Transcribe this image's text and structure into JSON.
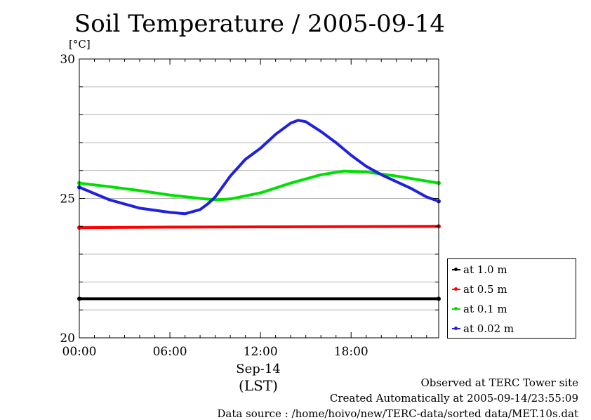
{
  "chart_data": {
    "type": "line",
    "title": "Soil Temperature / 2005-09-14",
    "ylabel": "[°C]",
    "ylim": [
      20,
      30
    ],
    "yticks": [
      20,
      25,
      30
    ],
    "xlim": [
      0,
      23.8
    ],
    "xtick_labels": [
      "00:00",
      "06:00",
      "12:00",
      "18:00"
    ],
    "xticks": [
      0,
      6,
      12,
      18
    ],
    "xlabel_lines": [
      "Sep-14",
      "(LST)"
    ],
    "grid": true,
    "legend_position": "right",
    "series": [
      {
        "name": "at 1.0 m",
        "color": "#000000",
        "x": [
          0,
          6,
          12,
          18,
          23.8
        ],
        "y": [
          21.4,
          21.4,
          21.4,
          21.4,
          21.4
        ]
      },
      {
        "name": "at 0.5 m",
        "color": "#ff0000",
        "x": [
          0,
          6,
          12,
          18,
          23.8
        ],
        "y": [
          23.95,
          23.97,
          23.98,
          23.99,
          24.0
        ]
      },
      {
        "name": "at 0.1 m",
        "color": "#00e000",
        "x": [
          0,
          2,
          4,
          6,
          8,
          9,
          10,
          12,
          14,
          16,
          17.5,
          19,
          21,
          23.8
        ],
        "y": [
          25.55,
          25.42,
          25.28,
          25.12,
          25.0,
          24.95,
          24.98,
          25.2,
          25.55,
          25.85,
          25.98,
          25.95,
          25.8,
          25.55
        ]
      },
      {
        "name": "at 0.02 m",
        "color": "#2020e0",
        "x": [
          0,
          2,
          4,
          6,
          7,
          8,
          8.5,
          9,
          10,
          11,
          12,
          13,
          14,
          14.5,
          15,
          16,
          17,
          18,
          19,
          20,
          21,
          22,
          23,
          23.8
        ],
        "y": [
          25.4,
          24.95,
          24.65,
          24.5,
          24.45,
          24.6,
          24.8,
          25.05,
          25.8,
          26.4,
          26.8,
          27.3,
          27.7,
          27.8,
          27.75,
          27.4,
          27.0,
          26.55,
          26.15,
          25.85,
          25.6,
          25.35,
          25.05,
          24.9
        ]
      }
    ]
  },
  "footer": {
    "line1": "Observed at TERC Tower site",
    "line2": "Created Automatically at 2005-09-14/23:55:09",
    "line3": "Data source : /home/hoivo/new/TERC-data/sorted  data/MET.10s.dat"
  }
}
